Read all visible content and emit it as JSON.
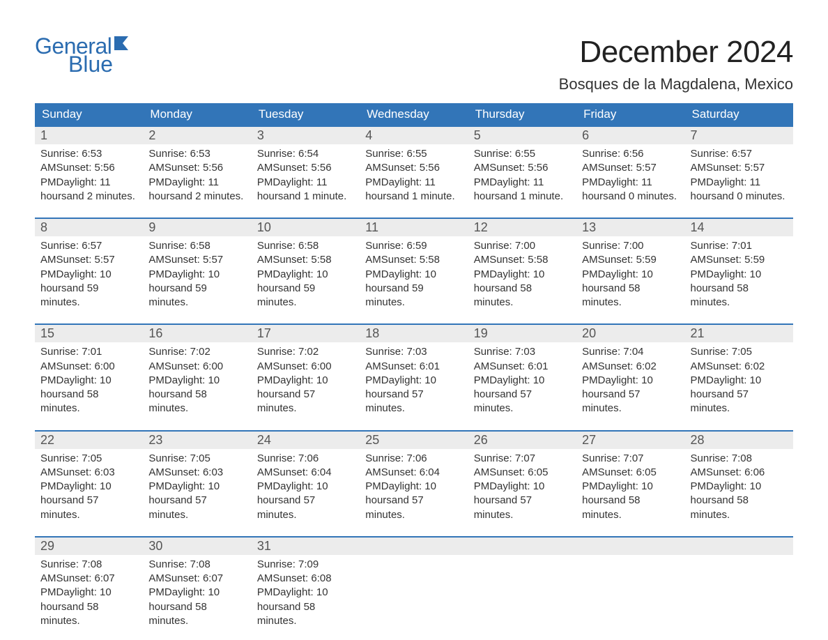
{
  "logo": {
    "word1": "General",
    "word2": "Blue",
    "color": "#2b6cb0"
  },
  "title": "December 2024",
  "location": "Bosques de la Magdalena, Mexico",
  "header_bg": "#3275b8",
  "header_fg": "#ffffff",
  "daynum_bg": "#ececec",
  "week_border": "#3275b8",
  "weekdays": [
    "Sunday",
    "Monday",
    "Tuesday",
    "Wednesday",
    "Thursday",
    "Friday",
    "Saturday"
  ],
  "weeks": [
    [
      {
        "n": "1",
        "sunrise": "6:53 AM",
        "sunset": "5:56 PM",
        "dl1": "11 hours",
        "dl2": "and 2 minutes."
      },
      {
        "n": "2",
        "sunrise": "6:53 AM",
        "sunset": "5:56 PM",
        "dl1": "11 hours",
        "dl2": "and 2 minutes."
      },
      {
        "n": "3",
        "sunrise": "6:54 AM",
        "sunset": "5:56 PM",
        "dl1": "11 hours",
        "dl2": "and 1 minute."
      },
      {
        "n": "4",
        "sunrise": "6:55 AM",
        "sunset": "5:56 PM",
        "dl1": "11 hours",
        "dl2": "and 1 minute."
      },
      {
        "n": "5",
        "sunrise": "6:55 AM",
        "sunset": "5:56 PM",
        "dl1": "11 hours",
        "dl2": "and 1 minute."
      },
      {
        "n": "6",
        "sunrise": "6:56 AM",
        "sunset": "5:57 PM",
        "dl1": "11 hours",
        "dl2": "and 0 minutes."
      },
      {
        "n": "7",
        "sunrise": "6:57 AM",
        "sunset": "5:57 PM",
        "dl1": "11 hours",
        "dl2": "and 0 minutes."
      }
    ],
    [
      {
        "n": "8",
        "sunrise": "6:57 AM",
        "sunset": "5:57 PM",
        "dl1": "10 hours",
        "dl2": "and 59 minutes."
      },
      {
        "n": "9",
        "sunrise": "6:58 AM",
        "sunset": "5:57 PM",
        "dl1": "10 hours",
        "dl2": "and 59 minutes."
      },
      {
        "n": "10",
        "sunrise": "6:58 AM",
        "sunset": "5:58 PM",
        "dl1": "10 hours",
        "dl2": "and 59 minutes."
      },
      {
        "n": "11",
        "sunrise": "6:59 AM",
        "sunset": "5:58 PM",
        "dl1": "10 hours",
        "dl2": "and 59 minutes."
      },
      {
        "n": "12",
        "sunrise": "7:00 AM",
        "sunset": "5:58 PM",
        "dl1": "10 hours",
        "dl2": "and 58 minutes."
      },
      {
        "n": "13",
        "sunrise": "7:00 AM",
        "sunset": "5:59 PM",
        "dl1": "10 hours",
        "dl2": "and 58 minutes."
      },
      {
        "n": "14",
        "sunrise": "7:01 AM",
        "sunset": "5:59 PM",
        "dl1": "10 hours",
        "dl2": "and 58 minutes."
      }
    ],
    [
      {
        "n": "15",
        "sunrise": "7:01 AM",
        "sunset": "6:00 PM",
        "dl1": "10 hours",
        "dl2": "and 58 minutes."
      },
      {
        "n": "16",
        "sunrise": "7:02 AM",
        "sunset": "6:00 PM",
        "dl1": "10 hours",
        "dl2": "and 58 minutes."
      },
      {
        "n": "17",
        "sunrise": "7:02 AM",
        "sunset": "6:00 PM",
        "dl1": "10 hours",
        "dl2": "and 57 minutes."
      },
      {
        "n": "18",
        "sunrise": "7:03 AM",
        "sunset": "6:01 PM",
        "dl1": "10 hours",
        "dl2": "and 57 minutes."
      },
      {
        "n": "19",
        "sunrise": "7:03 AM",
        "sunset": "6:01 PM",
        "dl1": "10 hours",
        "dl2": "and 57 minutes."
      },
      {
        "n": "20",
        "sunrise": "7:04 AM",
        "sunset": "6:02 PM",
        "dl1": "10 hours",
        "dl2": "and 57 minutes."
      },
      {
        "n": "21",
        "sunrise": "7:05 AM",
        "sunset": "6:02 PM",
        "dl1": "10 hours",
        "dl2": "and 57 minutes."
      }
    ],
    [
      {
        "n": "22",
        "sunrise": "7:05 AM",
        "sunset": "6:03 PM",
        "dl1": "10 hours",
        "dl2": "and 57 minutes."
      },
      {
        "n": "23",
        "sunrise": "7:05 AM",
        "sunset": "6:03 PM",
        "dl1": "10 hours",
        "dl2": "and 57 minutes."
      },
      {
        "n": "24",
        "sunrise": "7:06 AM",
        "sunset": "6:04 PM",
        "dl1": "10 hours",
        "dl2": "and 57 minutes."
      },
      {
        "n": "25",
        "sunrise": "7:06 AM",
        "sunset": "6:04 PM",
        "dl1": "10 hours",
        "dl2": "and 57 minutes."
      },
      {
        "n": "26",
        "sunrise": "7:07 AM",
        "sunset": "6:05 PM",
        "dl1": "10 hours",
        "dl2": "and 57 minutes."
      },
      {
        "n": "27",
        "sunrise": "7:07 AM",
        "sunset": "6:05 PM",
        "dl1": "10 hours",
        "dl2": "and 58 minutes."
      },
      {
        "n": "28",
        "sunrise": "7:08 AM",
        "sunset": "6:06 PM",
        "dl1": "10 hours",
        "dl2": "and 58 minutes."
      }
    ],
    [
      {
        "n": "29",
        "sunrise": "7:08 AM",
        "sunset": "6:07 PM",
        "dl1": "10 hours",
        "dl2": "and 58 minutes."
      },
      {
        "n": "30",
        "sunrise": "7:08 AM",
        "sunset": "6:07 PM",
        "dl1": "10 hours",
        "dl2": "and 58 minutes."
      },
      {
        "n": "31",
        "sunrise": "7:09 AM",
        "sunset": "6:08 PM",
        "dl1": "10 hours",
        "dl2": "and 58 minutes."
      },
      {
        "empty": true
      },
      {
        "empty": true
      },
      {
        "empty": true
      },
      {
        "empty": true
      }
    ]
  ],
  "labels": {
    "sunrise_prefix": "Sunrise: ",
    "sunset_prefix": "Sunset: ",
    "daylight_prefix": "Daylight: "
  }
}
